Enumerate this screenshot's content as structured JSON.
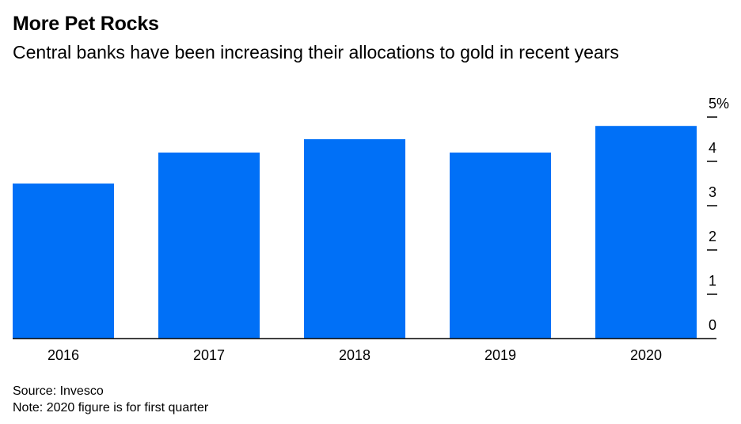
{
  "title": "More Pet Rocks",
  "subtitle": "Central banks have been increasing their allocations to gold in recent years",
  "source": "Source: Invesco",
  "note": "Note: 2020 figure is for first quarter",
  "colors": {
    "bar": "#0070F7",
    "axis": "#000000",
    "text": "#000000"
  },
  "chart_data": {
    "type": "bar",
    "categories": [
      "2016",
      "2017",
      "2018",
      "2019",
      "2020"
    ],
    "values": [
      3.5,
      4.2,
      4.5,
      4.2,
      4.8
    ],
    "ylim": [
      0,
      5
    ],
    "yticks": [
      0,
      1,
      2,
      3,
      4,
      5
    ],
    "ytick_labels": [
      "0",
      "1",
      "2",
      "3",
      "4",
      "5%"
    ],
    "xlabel": "",
    "ylabel": "",
    "grid": false,
    "y_axis_side": "right"
  }
}
